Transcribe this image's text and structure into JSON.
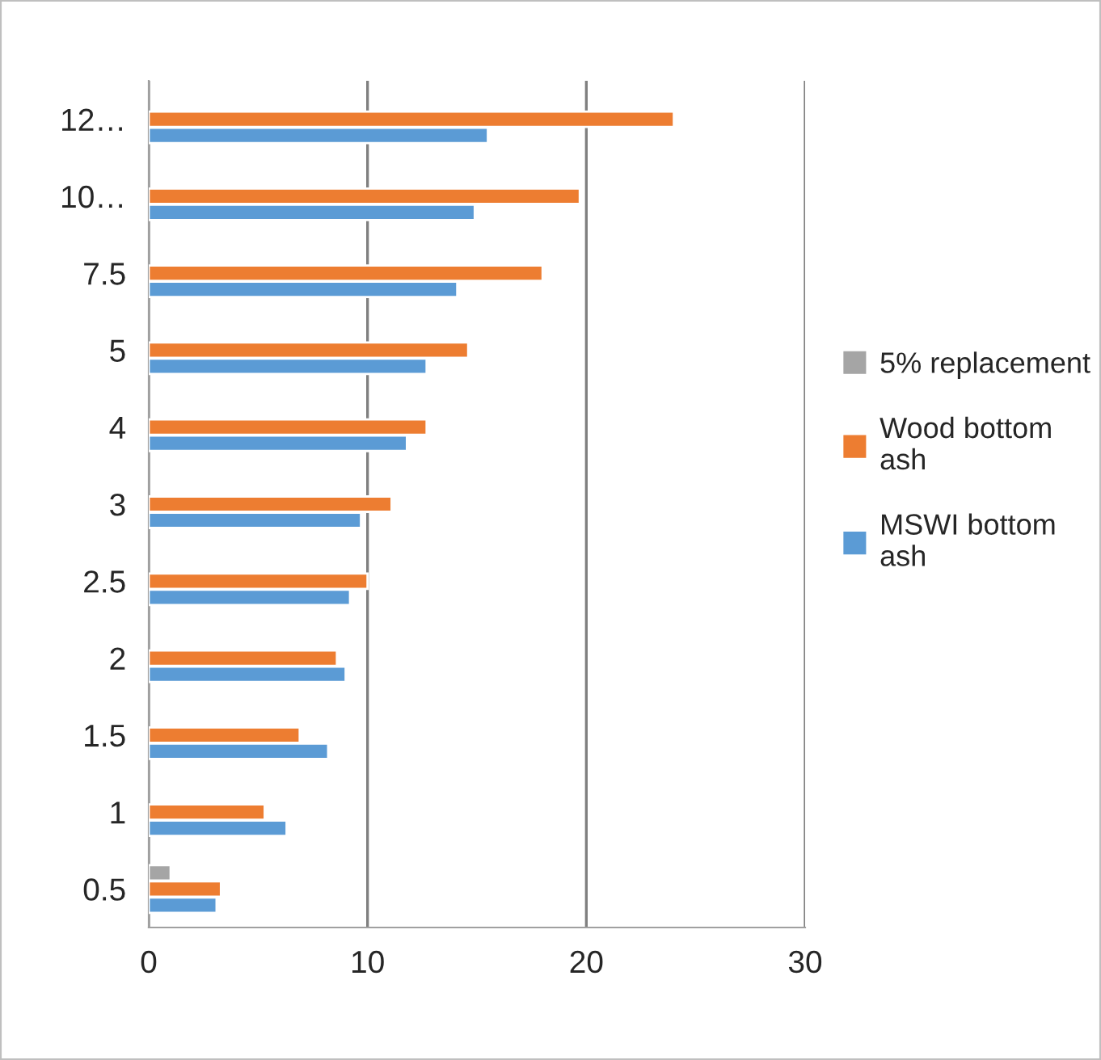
{
  "chart_data": {
    "type": "bar",
    "orientation": "horizontal",
    "categories": [
      "12…",
      "10…",
      "7.5",
      "5",
      "4",
      "3",
      "2.5",
      "2",
      "1.5",
      "1",
      "0.5"
    ],
    "series": [
      {
        "name": "MSWI bottom ash",
        "color": "#5b9bd5",
        "values": [
          15.5,
          14.9,
          14.1,
          12.7,
          11.8,
          9.7,
          9.2,
          9.0,
          8.2,
          6.3,
          3.1
        ]
      },
      {
        "name": "Wood bottom ash",
        "color": "#ed7d31",
        "values": [
          24.0,
          19.7,
          18.0,
          14.6,
          12.7,
          11.1,
          10.0,
          8.6,
          6.9,
          5.3,
          3.3
        ]
      },
      {
        "name": "5% replacement",
        "color": "#a5a5a5",
        "values": [
          null,
          null,
          null,
          null,
          null,
          null,
          null,
          null,
          null,
          null,
          1.0
        ]
      }
    ],
    "xlim": [
      0,
      30
    ],
    "xticks": [
      0,
      10,
      20,
      30
    ],
    "grid": "x",
    "legend": "right"
  }
}
